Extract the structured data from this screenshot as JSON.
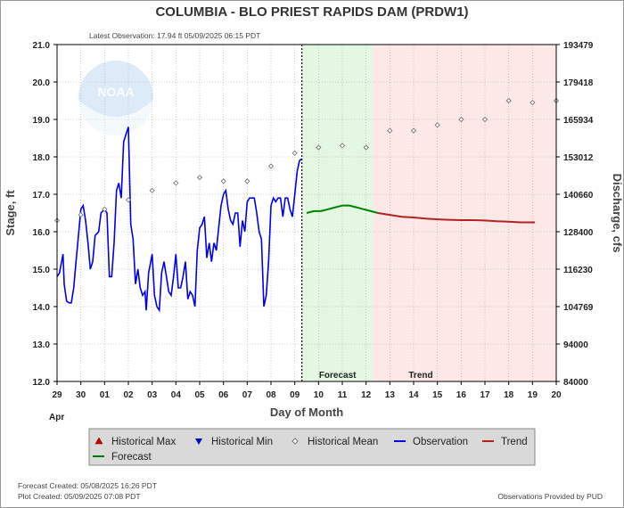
{
  "title": "COLUMBIA - BLO PRIEST RAPIDS DAM  (PRDW1)",
  "latest_observation": "Latest Observation: 17.94 ft 05/09/2025 06:15 PDT",
  "logo_text": "NOAA",
  "footer": {
    "forecast_created": "Forecast Created: 05/08/2025 16:26 PDT",
    "plot_created": "Plot Created: 05/09/2025 07:08 PDT",
    "provider": "Observations Provided by PUD"
  },
  "colors": {
    "observation": "#0000ee",
    "forecast": "#008000",
    "trend": "#b22222",
    "hist_max": "#cc0000",
    "hist_min": "#0000cc",
    "hist_mean": "#888888",
    "forecast_region": "#e3f7e3",
    "trend_region": "#fde8e8",
    "legend_bg": "#d9d9d9"
  },
  "chart_data": {
    "type": "line",
    "xlabel": "Day of Month",
    "ylabel": "Stage, ft",
    "y2label": "Discharge, cfs",
    "ylim": [
      12.0,
      21.0
    ],
    "y_ticks": [
      "12.0",
      "13.0",
      "14.0",
      "15.0",
      "16.0",
      "17.0",
      "18.0",
      "19.0",
      "20.0",
      "21.0"
    ],
    "y2_ticks": [
      "84000",
      "94000",
      "104769",
      "116230",
      "128400",
      "140660",
      "153012",
      "165934",
      "179418",
      "193479"
    ],
    "xlim": [
      0,
      21
    ],
    "x_ticks": [
      "29",
      "30",
      "01",
      "02",
      "03",
      "04",
      "05",
      "06",
      "07",
      "08",
      "09",
      "10",
      "11",
      "12",
      "13",
      "14",
      "15",
      "16",
      "17",
      "18",
      "19",
      "20"
    ],
    "x_month_label": "Apr",
    "grid": true,
    "now_x": 10.3,
    "forecast_region": {
      "x_start": 10.3,
      "x_end": 13.3,
      "label": "Forecast"
    },
    "trend_region": {
      "x_start": 13.3,
      "x_end": 21,
      "label": "Trend"
    },
    "legend_placement": "bottom",
    "series": [
      {
        "name": "Observation",
        "style": "line",
        "x": [
          0.0,
          0.1,
          0.25,
          0.3,
          0.4,
          0.5,
          0.6,
          0.7,
          0.8,
          1.0,
          1.1,
          1.2,
          1.3,
          1.4,
          1.5,
          1.6,
          1.75,
          1.85,
          2.0,
          2.1,
          2.2,
          2.3,
          2.4,
          2.5,
          2.6,
          2.7,
          2.8,
          2.9,
          3.0,
          3.1,
          3.2,
          3.3,
          3.4,
          3.5,
          3.6,
          3.7,
          3.75,
          3.85,
          4.0,
          4.1,
          4.2,
          4.3,
          4.4,
          4.5,
          4.6,
          4.7,
          4.8,
          4.9,
          5.0,
          5.1,
          5.2,
          5.3,
          5.4,
          5.5,
          5.6,
          5.7,
          5.8,
          5.9,
          6.0,
          6.1,
          6.2,
          6.3,
          6.4,
          6.5,
          6.6,
          6.7,
          6.8,
          6.9,
          7.0,
          7.1,
          7.2,
          7.3,
          7.4,
          7.5,
          7.6,
          7.7,
          7.8,
          7.9,
          8.0,
          8.1,
          8.2,
          8.3,
          8.4,
          8.5,
          8.6,
          8.7,
          8.8,
          8.9,
          9.0,
          9.1,
          9.2,
          9.3,
          9.4,
          9.5,
          9.6,
          9.7,
          9.8,
          9.9,
          10.0,
          10.1,
          10.2,
          10.3
        ],
        "values": [
          14.8,
          14.9,
          15.4,
          14.6,
          14.15,
          14.1,
          14.1,
          14.5,
          15.2,
          16.6,
          16.7,
          16.3,
          15.7,
          15.0,
          15.2,
          15.9,
          16.0,
          16.5,
          16.6,
          16.5,
          14.8,
          14.8,
          15.7,
          17.1,
          17.3,
          16.9,
          18.4,
          18.6,
          18.8,
          16.2,
          15.8,
          14.6,
          15.0,
          14.5,
          14.3,
          14.4,
          13.9,
          14.9,
          15.4,
          14.3,
          14.0,
          13.9,
          14.9,
          15.2,
          14.8,
          14.4,
          14.3,
          14.8,
          15.4,
          14.5,
          14.5,
          14.8,
          15.2,
          14.2,
          14.4,
          14.3,
          14.0,
          15.5,
          16.1,
          16.2,
          16.4,
          15.3,
          15.7,
          15.2,
          15.7,
          15.5,
          16.1,
          16.7,
          17.0,
          17.1,
          16.6,
          16.3,
          16.2,
          16.5,
          16.5,
          15.6,
          16.3,
          16.0,
          16.8,
          16.9,
          16.9,
          16.9,
          16.5,
          16.0,
          15.8,
          14.0,
          14.3,
          15.2,
          16.7,
          16.9,
          16.8,
          16.9,
          16.9,
          16.4,
          16.9,
          16.9,
          16.6,
          16.4,
          17.0,
          17.6,
          17.9,
          17.95
        ]
      },
      {
        "name": "Forecast",
        "style": "line",
        "x": [
          10.5,
          10.8,
          11.1,
          11.4,
          11.7,
          12.0,
          12.3,
          12.6,
          12.9,
          13.2,
          13.5
        ],
        "values": [
          16.5,
          16.55,
          16.55,
          16.6,
          16.65,
          16.7,
          16.7,
          16.65,
          16.6,
          16.55,
          16.5
        ]
      },
      {
        "name": "Trend",
        "style": "line",
        "x": [
          13.5,
          14.0,
          14.5,
          15.0,
          15.5,
          16.0,
          16.5,
          17.0,
          17.5,
          18.0,
          18.5,
          19.0,
          19.5,
          20.1
        ],
        "values": [
          16.5,
          16.45,
          16.4,
          16.38,
          16.35,
          16.33,
          16.32,
          16.31,
          16.31,
          16.3,
          16.28,
          16.27,
          16.25,
          16.25
        ]
      },
      {
        "name": "Historical Mean",
        "style": "marker",
        "x": [
          0,
          1,
          2,
          3,
          4,
          5,
          6,
          7,
          8,
          9,
          10,
          11,
          12,
          13,
          14,
          15,
          16,
          17,
          18,
          19,
          20,
          21
        ],
        "values": [
          16.3,
          16.45,
          16.6,
          16.85,
          17.1,
          17.3,
          17.45,
          17.35,
          17.35,
          17.75,
          18.1,
          18.25,
          18.3,
          18.25,
          18.7,
          18.7,
          18.85,
          19.0,
          19.0,
          19.5,
          19.45,
          19.5
        ]
      }
    ],
    "legend": [
      {
        "name": "Historical Max",
        "symbol": "triangle-up"
      },
      {
        "name": "Historical Min",
        "symbol": "triangle-down"
      },
      {
        "name": "Historical Mean",
        "symbol": "diamond"
      },
      {
        "name": "Observation",
        "symbol": "line-blue"
      },
      {
        "name": "Trend",
        "symbol": "line-red"
      },
      {
        "name": "Forecast",
        "symbol": "line-green"
      }
    ]
  }
}
